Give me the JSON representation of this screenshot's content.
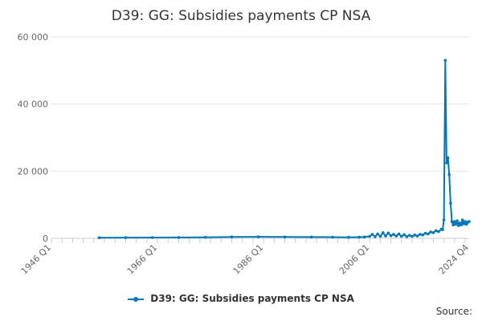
{
  "chart_data": {
    "type": "line",
    "title": "D39: GG: Subsidies payments CP NSA",
    "ylim": [
      0,
      60000
    ],
    "yticks": [
      0,
      20000,
      40000,
      60000
    ],
    "ytick_labels": [
      "0",
      "20 000",
      "40 000",
      "60 000"
    ],
    "x_range": [
      "1946 Q1",
      "2024 Q4"
    ],
    "xtick_labels": [
      "1946 Q1",
      "1966 Q1",
      "1986 Q1",
      "2006 Q1",
      "2024 Q4"
    ],
    "grid": true,
    "legend_position": "bottom",
    "series": [
      {
        "name": "D39: GG: Subsidies payments CP NSA",
        "color": "#0077b6",
        "points": [
          [
            "1955 Q1",
            200
          ],
          [
            "1960 Q1",
            220
          ],
          [
            "1965 Q1",
            240
          ],
          [
            "1970 Q1",
            260
          ],
          [
            "1975 Q1",
            300
          ],
          [
            "1980 Q1",
            420
          ],
          [
            "1985 Q1",
            460
          ],
          [
            "1990 Q1",
            400
          ],
          [
            "1995 Q1",
            380
          ],
          [
            "1999 Q1",
            350
          ],
          [
            "2002 Q1",
            300
          ],
          [
            "2004 Q1",
            350
          ],
          [
            "2005 Q1",
            400
          ],
          [
            "2006 Q1",
            600
          ],
          [
            "2006 Q3",
            1200
          ],
          [
            "2007 Q1",
            500
          ],
          [
            "2007 Q3",
            1300
          ],
          [
            "2008 Q1",
            600
          ],
          [
            "2008 Q3",
            1700
          ],
          [
            "2009 Q1",
            700
          ],
          [
            "2009 Q3",
            1600
          ],
          [
            "2010 Q1",
            800
          ],
          [
            "2010 Q3",
            1200
          ],
          [
            "2011 Q1",
            700
          ],
          [
            "2011 Q3",
            1300
          ],
          [
            "2012 Q1",
            600
          ],
          [
            "2012 Q3",
            1100
          ],
          [
            "2013 Q1",
            500
          ],
          [
            "2013 Q3",
            900
          ],
          [
            "2014 Q1",
            600
          ],
          [
            "2014 Q3",
            1000
          ],
          [
            "2015 Q1",
            700
          ],
          [
            "2015 Q3",
            1200
          ],
          [
            "2016 Q1",
            1000
          ],
          [
            "2016 Q3",
            1500
          ],
          [
            "2017 Q1",
            1300
          ],
          [
            "2017 Q3",
            1900
          ],
          [
            "2018 Q1",
            1700
          ],
          [
            "2018 Q3",
            2300
          ],
          [
            "2019 Q1",
            2000
          ],
          [
            "2019 Q3",
            2700
          ],
          [
            "2019 Q4",
            2600
          ],
          [
            "2020 Q1",
            5500
          ],
          [
            "2020 Q2",
            53000
          ],
          [
            "2020 Q3",
            22500
          ],
          [
            "2020 Q4",
            24000
          ],
          [
            "2021 Q1",
            19000
          ],
          [
            "2021 Q2",
            10500
          ],
          [
            "2021 Q3",
            5000
          ],
          [
            "2021 Q4",
            4000
          ],
          [
            "2022 Q1",
            5000
          ],
          [
            "2022 Q2",
            4200
          ],
          [
            "2022 Q3",
            5200
          ],
          [
            "2022 Q4",
            3800
          ],
          [
            "2023 Q1",
            4600
          ],
          [
            "2023 Q2",
            4000
          ],
          [
            "2023 Q3",
            5500
          ],
          [
            "2023 Q4",
            4300
          ],
          [
            "2024 Q1",
            5000
          ],
          [
            "2024 Q2",
            4200
          ],
          [
            "2024 Q3",
            4800
          ],
          [
            "2024 Q4",
            5000
          ]
        ]
      }
    ]
  },
  "source_label": "Source:"
}
